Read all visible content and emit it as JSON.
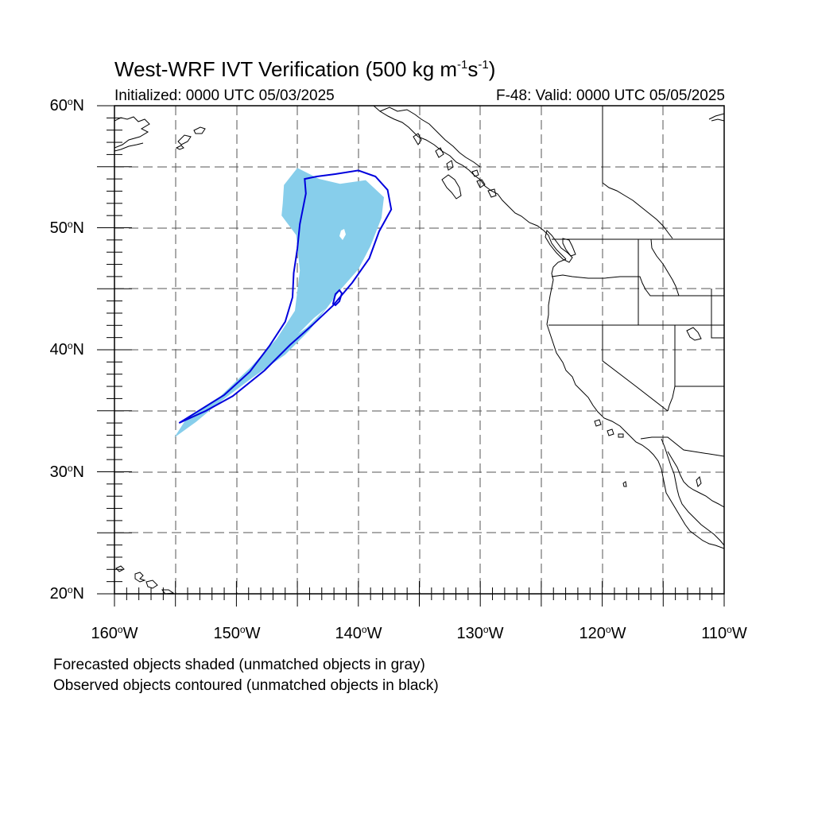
{
  "title": {
    "main": "West-WRF IVT Verification (500 kg m",
    "exp1": "-1",
    "mid": "s",
    "exp2": "-1",
    "close": ")"
  },
  "subtitle": {
    "initialized": "Initialized: 0000 UTC 05/03/2025",
    "valid": "F-48: Valid: 0000 UTC 05/05/2025"
  },
  "axes": {
    "lat_labels": [
      {
        "num": "60",
        "deg": "o",
        "hem": "N"
      },
      {
        "num": "50",
        "deg": "o",
        "hem": "N"
      },
      {
        "num": "40",
        "deg": "o",
        "hem": "N"
      },
      {
        "num": "30",
        "deg": "o",
        "hem": "N"
      },
      {
        "num": "20",
        "deg": "o",
        "hem": "N"
      }
    ],
    "lon_labels": [
      {
        "num": "160",
        "deg": "o",
        "hem": "W"
      },
      {
        "num": "150",
        "deg": "o",
        "hem": "W"
      },
      {
        "num": "140",
        "deg": "o",
        "hem": "W"
      },
      {
        "num": "130",
        "deg": "o",
        "hem": "W"
      },
      {
        "num": "120",
        "deg": "o",
        "hem": "W"
      },
      {
        "num": "110",
        "deg": "o",
        "hem": "W"
      }
    ],
    "lat_range": [
      20,
      60
    ],
    "lon_range": [
      -160,
      -110
    ],
    "grid_spacing_deg": 5,
    "grid_style": "dashed"
  },
  "legend_notes": {
    "forecast": "Forecasted objects shaded (unmatched objects in gray)",
    "observed": "Observed objects contoured (unmatched objects in black)"
  },
  "colors": {
    "forecast_fill": "#87ceeb",
    "observed_contour": "#0000dd",
    "coastline": "#000000",
    "grid": "#555555"
  },
  "objects": {
    "forecast_shaded": {
      "lat_lon_outline": [
        [
          32.8,
          -155.1
        ],
        [
          34.5,
          -154.0
        ],
        [
          36.2,
          -151.3
        ],
        [
          38.6,
          -148.8
        ],
        [
          40.9,
          -146.7
        ],
        [
          43.2,
          -145.2
        ],
        [
          46.5,
          -144.8
        ],
        [
          49.4,
          -145.1
        ],
        [
          51.0,
          -146.3
        ],
        [
          52.0,
          -146.2
        ],
        [
          53.5,
          -146.1
        ],
        [
          54.9,
          -145.0
        ],
        [
          54.0,
          -143.2
        ],
        [
          53.6,
          -141.5
        ],
        [
          53.9,
          -139.4
        ],
        [
          52.5,
          -137.9
        ],
        [
          50.8,
          -138.1
        ],
        [
          48.5,
          -139.0
        ],
        [
          46.6,
          -140.0
        ],
        [
          45.0,
          -141.4
        ],
        [
          43.4,
          -142.6
        ],
        [
          41.6,
          -144.0
        ],
        [
          39.6,
          -146.0
        ],
        [
          37.7,
          -148.7
        ],
        [
          35.6,
          -151.5
        ],
        [
          34.1,
          -153.3
        ]
      ]
    },
    "observed_contour": {
      "lat_lon_outline": [
        [
          34.0,
          -154.7
        ],
        [
          34.8,
          -153.4
        ],
        [
          36.3,
          -151.0
        ],
        [
          38.2,
          -148.9
        ],
        [
          40.3,
          -147.3
        ],
        [
          42.3,
          -146.0
        ],
        [
          44.3,
          -145.4
        ],
        [
          46.3,
          -145.3
        ],
        [
          48.3,
          -145.0
        ],
        [
          50.3,
          -144.8
        ],
        [
          52.8,
          -144.3
        ],
        [
          54.0,
          -144.4
        ],
        [
          54.2,
          -143.4
        ],
        [
          54.4,
          -141.9
        ],
        [
          54.7,
          -140.0
        ],
        [
          54.2,
          -138.6
        ],
        [
          53.1,
          -137.6
        ],
        [
          51.5,
          -137.3
        ],
        [
          49.7,
          -138.3
        ],
        [
          47.5,
          -139.1
        ],
        [
          45.5,
          -140.5
        ],
        [
          43.6,
          -142.1
        ],
        [
          42.0,
          -143.8
        ],
        [
          40.4,
          -145.6
        ],
        [
          38.3,
          -147.7
        ],
        [
          36.2,
          -150.3
        ],
        [
          35.0,
          -152.5
        ]
      ]
    }
  }
}
